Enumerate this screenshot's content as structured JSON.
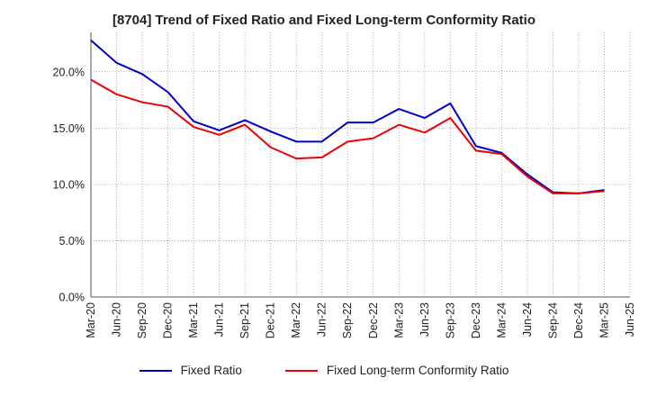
{
  "chart_data": {
    "type": "line",
    "title": "[8704]  Trend of Fixed Ratio and Fixed Long-term Conformity Ratio",
    "xlabel": "",
    "ylabel": "",
    "ylim": [
      0,
      23.5
    ],
    "yticks": [
      0,
      5,
      10,
      15,
      20
    ],
    "ytick_labels": [
      "0.0%",
      "5.0%",
      "10.0%",
      "15.0%",
      "20.0%"
    ],
    "categories": [
      "Mar-20",
      "Jun-20",
      "Sep-20",
      "Dec-20",
      "Mar-21",
      "Jun-21",
      "Sep-21",
      "Dec-21",
      "Mar-22",
      "Jun-22",
      "Sep-22",
      "Dec-22",
      "Mar-23",
      "Jun-23",
      "Sep-23",
      "Dec-23",
      "Mar-24",
      "Jun-24",
      "Sep-24",
      "Dec-24",
      "Mar-25",
      "Jun-25"
    ],
    "grid": true,
    "legend_position": "bottom",
    "series": [
      {
        "name": "Fixed Ratio",
        "color": "#0000cc",
        "values": [
          22.8,
          20.8,
          19.8,
          18.2,
          15.6,
          14.8,
          15.7,
          14.7,
          13.8,
          13.8,
          15.5,
          15.5,
          16.7,
          15.9,
          17.2,
          13.4,
          12.8,
          10.9,
          9.3,
          9.2,
          9.5,
          null
        ]
      },
      {
        "name": "Fixed Long-term Conformity Ratio",
        "color": "#ee0000",
        "values": [
          19.3,
          18.0,
          17.3,
          16.9,
          15.1,
          14.4,
          15.3,
          13.3,
          12.3,
          12.4,
          13.8,
          14.1,
          15.3,
          14.6,
          15.9,
          13.0,
          12.7,
          10.7,
          9.2,
          9.2,
          9.4,
          null
        ]
      }
    ]
  }
}
